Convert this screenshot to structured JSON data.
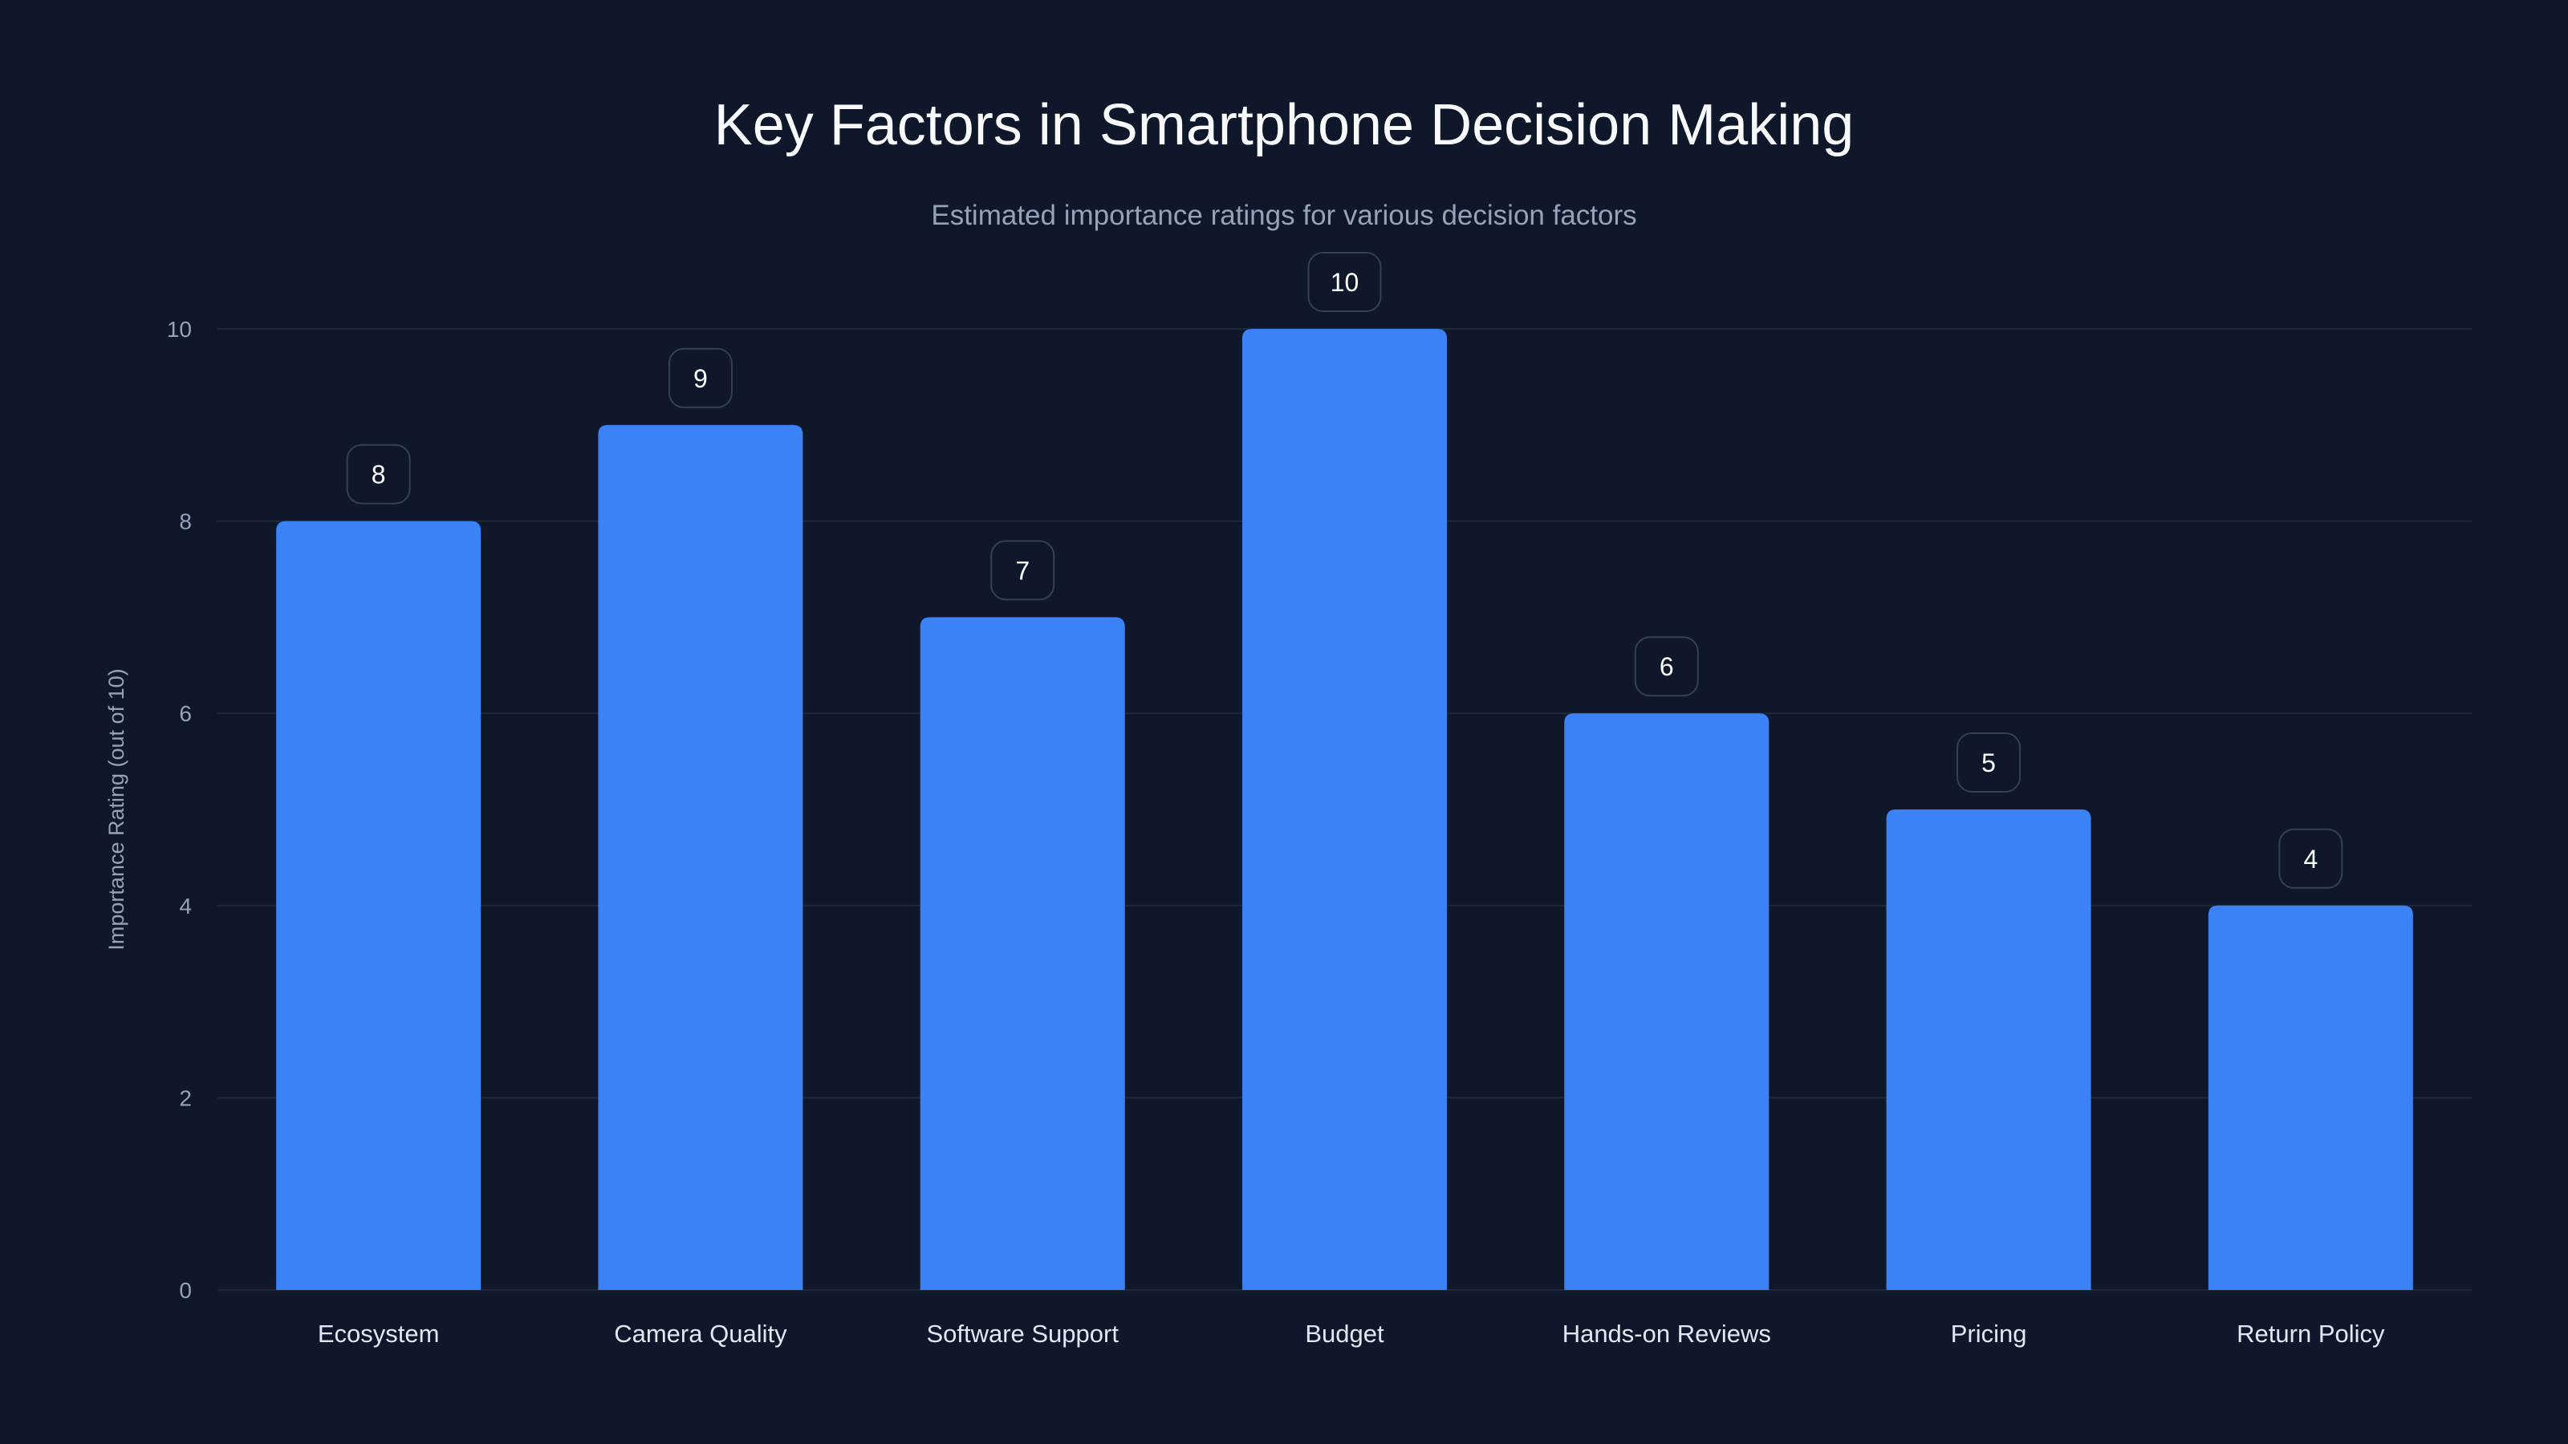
{
  "chart_data": {
    "type": "bar",
    "title": "Key Factors in Smartphone Decision Making",
    "subtitle": "Estimated importance ratings for various decision factors",
    "xlabel": "",
    "ylabel": "Importance Rating (out of 10)",
    "ylim": [
      0,
      10
    ],
    "yticks": [
      0,
      2,
      4,
      6,
      8,
      10
    ],
    "grid": true,
    "categories": [
      "Ecosystem",
      "Camera Quality",
      "Software Support",
      "Budget",
      "Hands-on Reviews",
      "Pricing",
      "Return Policy"
    ],
    "values": [
      8,
      9,
      7,
      10,
      6,
      5,
      4
    ],
    "colors": {
      "background": "#0f172a",
      "bar": "#3b82f6",
      "grid": "#1e293b",
      "label_border": "#334155"
    }
  }
}
